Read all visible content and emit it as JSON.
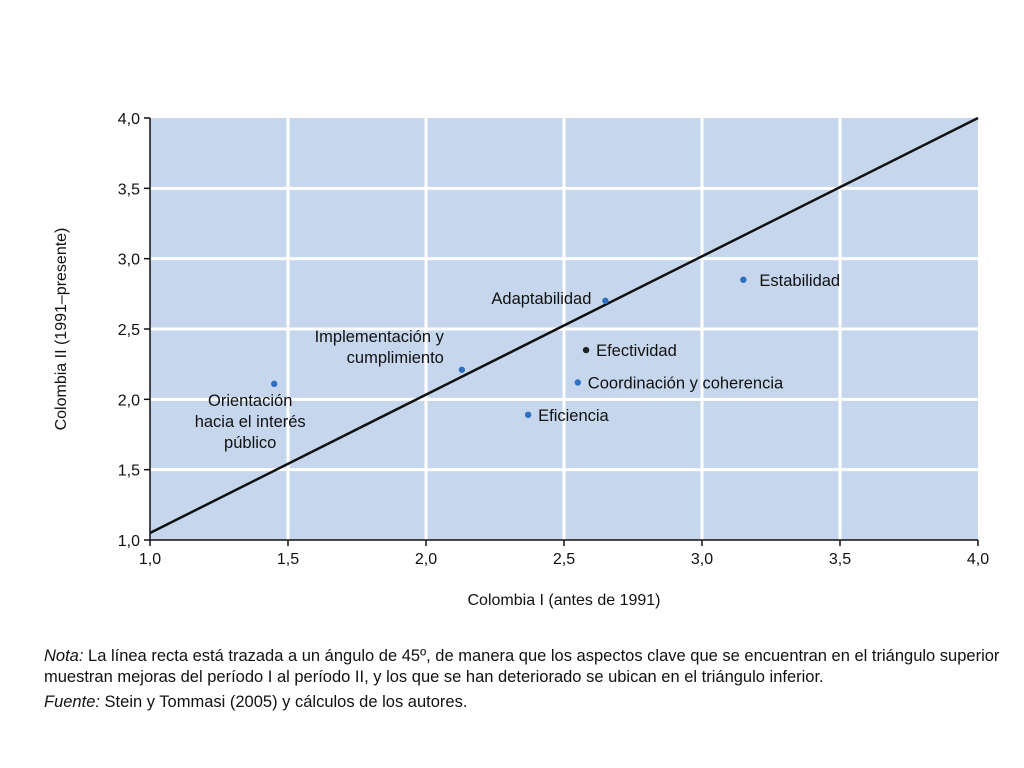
{
  "chart_data": {
    "type": "scatter",
    "title": "",
    "xlabel": "Colombia I (antes de 1991)",
    "ylabel": "Colombia II (1991–presente)",
    "xlim": [
      1.0,
      4.0
    ],
    "ylim": [
      1.0,
      4.0
    ],
    "x_ticks": [
      "1,0",
      "1,5",
      "2,0",
      "2,5",
      "3,0",
      "3,5",
      "4,0"
    ],
    "y_ticks": [
      "1,0",
      "1,5",
      "2,0",
      "2,5",
      "3,0",
      "3,5",
      "4,0"
    ],
    "grid": true,
    "reference_line": {
      "from": [
        1.0,
        1.05
      ],
      "to": [
        4.0,
        4.0
      ]
    },
    "points": [
      {
        "label_lines": [
          "Estabilidad"
        ],
        "x": 3.15,
        "y": 2.85,
        "color": "#2e6fc1"
      },
      {
        "label_lines": [
          "Adaptabilidad"
        ],
        "x": 2.65,
        "y": 2.7,
        "color": "#2e6fc1"
      },
      {
        "label_lines": [
          "Efectividad"
        ],
        "x": 2.58,
        "y": 2.35,
        "color": "#222222"
      },
      {
        "label_lines": [
          "Implementación y",
          "cumplimiento"
        ],
        "x": 2.13,
        "y": 2.21,
        "color": "#2e6fc1"
      },
      {
        "label_lines": [
          "Coordinación y coherencia"
        ],
        "x": 2.55,
        "y": 2.12,
        "color": "#2e6fc1"
      },
      {
        "label_lines": [
          "Orientación",
          "hacia el interés",
          "público"
        ],
        "x": 1.45,
        "y": 2.11,
        "color": "#2e6fc1"
      },
      {
        "label_lines": [
          "Eficiencia"
        ],
        "x": 2.37,
        "y": 1.89,
        "color": "#2e6fc1"
      }
    ],
    "colors": {
      "plot_background": "#c6d7ed",
      "grid": "#ffffff",
      "line": "#111111"
    }
  },
  "notes": {
    "nota_label": "Nota:",
    "nota_text": " La línea recta está trazada a un ángulo de 45º, de manera que los aspectos clave que se encuentran en el triángulo superior muestran mejoras del período I al período II, y los que se han deteriorado se ubican en el triángulo inferior.",
    "fuente_label": "Fuente:",
    "fuente_text": " Stein y Tommasi (2005) y cálculos de los autores."
  }
}
